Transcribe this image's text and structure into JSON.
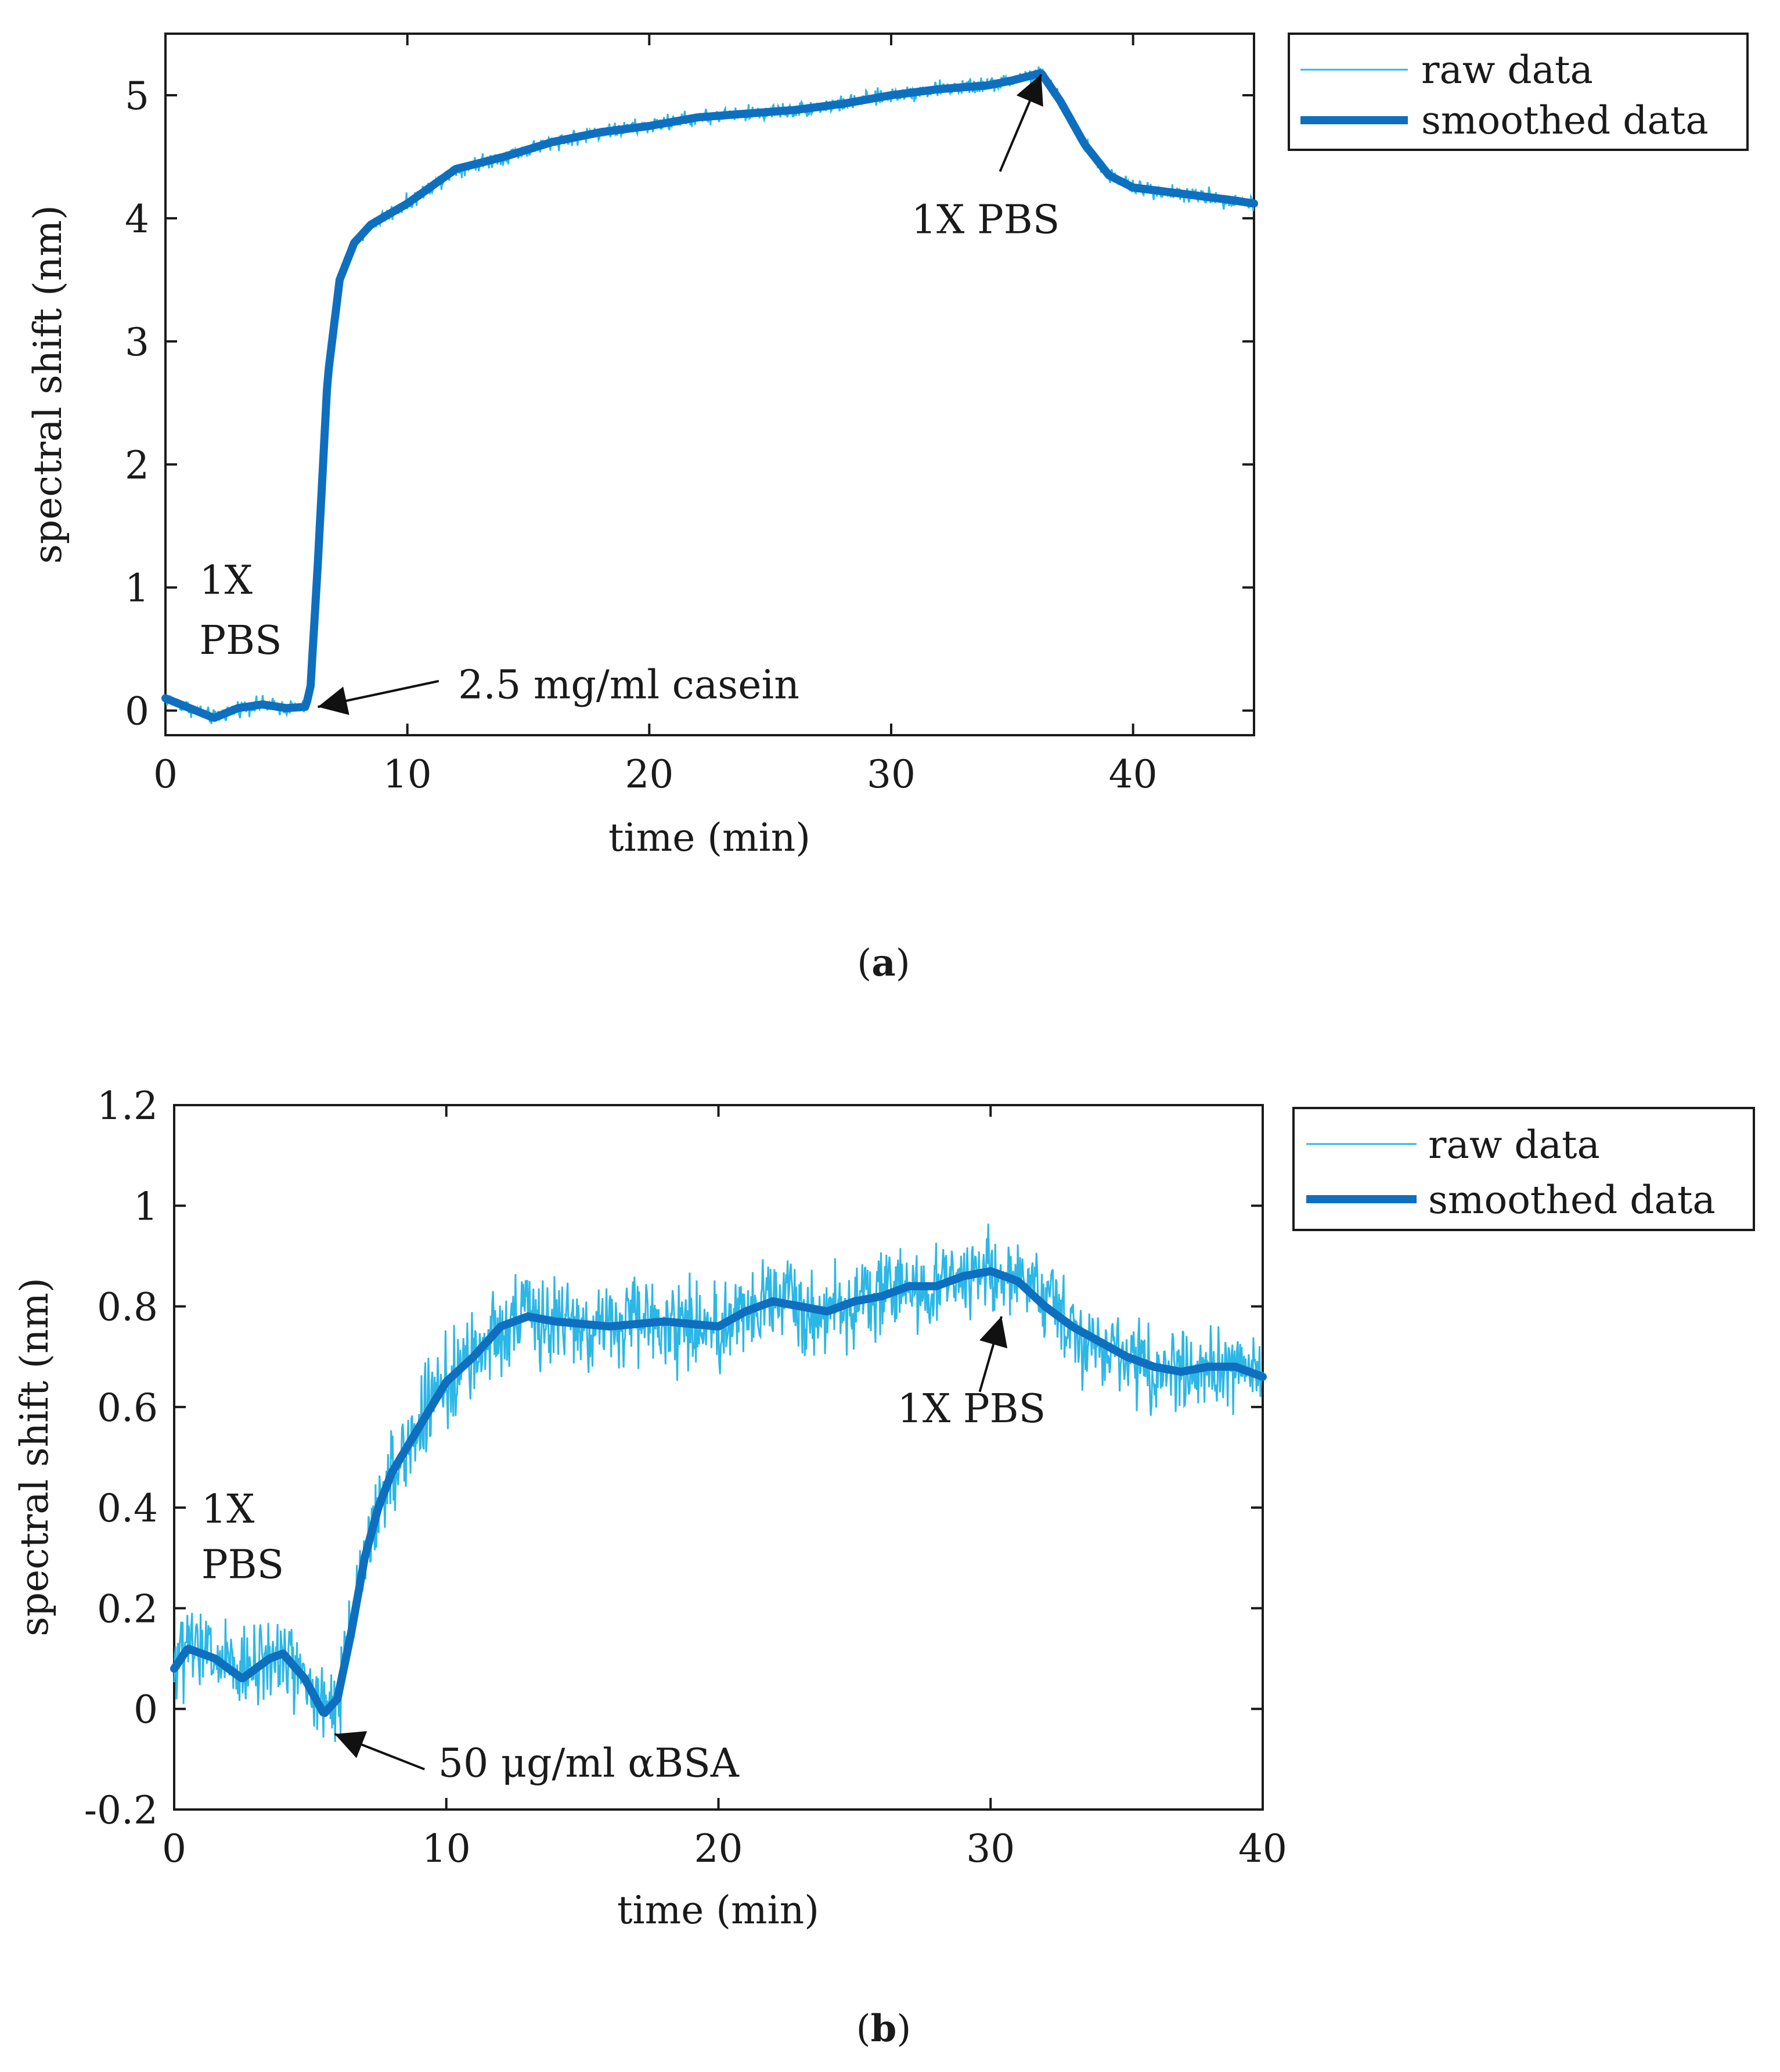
{
  "colors": {
    "raw": "#2cb7e6",
    "smoothed": "#0f6fbf",
    "axis": "#1a1a1a",
    "background": "#ffffff"
  },
  "chart_data": [
    {
      "panel_label": "(a)",
      "panel_letter": "a",
      "type": "line",
      "xlabel": "time (min)",
      "ylabel": "spectral shift (nm)",
      "xlim": [
        0,
        45
      ],
      "ylim": [
        -0.2,
        5.5
      ],
      "xticks": [
        0,
        10,
        20,
        30,
        40
      ],
      "xtick_labels": [
        "0",
        "10",
        "20",
        "30",
        "40"
      ],
      "yticks": [
        0,
        1,
        2,
        3,
        4,
        5
      ],
      "ytick_labels": [
        "0",
        "1",
        "2",
        "3",
        "4",
        "5"
      ],
      "legend": {
        "position": "outside-top-right",
        "entries": [
          "raw data",
          "smoothed data"
        ]
      },
      "series": [
        {
          "name": "raw data",
          "noise": 0.06,
          "x": [
            0,
            1,
            2,
            3,
            4,
            5,
            5.8,
            6.0,
            6.3,
            6.7,
            7.2,
            7.8,
            8.5,
            10,
            12,
            14,
            16,
            18,
            20,
            22,
            24,
            26,
            28,
            30,
            32,
            34,
            35,
            36.2,
            37,
            38,
            39,
            40,
            42,
            44,
            45
          ],
          "y": [
            0.1,
            0.02,
            -0.06,
            0.02,
            0.05,
            0.02,
            0.03,
            0.2,
            1.2,
            2.7,
            3.5,
            3.8,
            3.95,
            4.12,
            4.4,
            4.5,
            4.62,
            4.7,
            4.75,
            4.82,
            4.85,
            4.88,
            4.93,
            5.0,
            5.05,
            5.08,
            5.12,
            5.18,
            4.95,
            4.6,
            4.35,
            4.25,
            4.2,
            4.15,
            4.12
          ]
        },
        {
          "name": "smoothed data",
          "x": [
            0,
            1,
            2,
            3,
            4,
            5,
            5.8,
            6.0,
            6.3,
            6.7,
            7.2,
            7.8,
            8.5,
            10,
            12,
            14,
            16,
            18,
            20,
            22,
            24,
            26,
            28,
            30,
            32,
            34,
            35,
            36.2,
            37,
            38,
            39,
            40,
            42,
            44,
            45
          ],
          "y": [
            0.1,
            0.02,
            -0.06,
            0.02,
            0.05,
            0.02,
            0.03,
            0.2,
            1.2,
            2.7,
            3.5,
            3.8,
            3.95,
            4.12,
            4.4,
            4.5,
            4.62,
            4.7,
            4.75,
            4.82,
            4.85,
            4.88,
            4.93,
            5.0,
            5.05,
            5.08,
            5.12,
            5.18,
            4.95,
            4.6,
            4.35,
            4.25,
            4.2,
            4.15,
            4.12
          ]
        }
      ],
      "annotations": [
        {
          "id": "a-1x-pbs-start-1",
          "text": "1X",
          "x": 1.4,
          "y": 0.95,
          "anchor": "start"
        },
        {
          "id": "a-1x-pbs-start-2",
          "text": "PBS",
          "x": 1.4,
          "y": 0.46,
          "anchor": "start"
        },
        {
          "id": "a-casein",
          "text": "2.5 mg/ml casein",
          "x": 12.1,
          "y": 0.1,
          "anchor": "start",
          "arrow": {
            "from": [
              11.3,
              0.24
            ],
            "to": [
              6.3,
              0.03
            ]
          }
        },
        {
          "id": "a-1x-pbs-end",
          "text": "1X PBS",
          "x": 33.9,
          "y": 3.88,
          "anchor": "middle",
          "arrow": {
            "from": [
              34.5,
              4.38
            ],
            "to": [
              36.2,
              5.17
            ]
          }
        }
      ]
    },
    {
      "panel_label": "(b)",
      "panel_letter": "b",
      "type": "line",
      "xlabel": "time (min)",
      "ylabel": "spectral shift (nm)",
      "xlim": [
        0,
        40
      ],
      "ylim": [
        -0.2,
        1.2
      ],
      "xticks": [
        0,
        10,
        20,
        30,
        40
      ],
      "xtick_labels": [
        "0",
        "10",
        "20",
        "30",
        "40"
      ],
      "yticks": [
        -0.2,
        0,
        0.2,
        0.4,
        0.6,
        0.8,
        1,
        1.2
      ],
      "ytick_labels": [
        "-0.2",
        "0",
        "0.2",
        "0.4",
        "0.6",
        "0.8",
        "1",
        "1.2"
      ],
      "legend": {
        "position": "outside-top-right",
        "entries": [
          "raw data",
          "smoothed data"
        ]
      },
      "series": [
        {
          "name": "raw data",
          "noise": 0.08,
          "x": [
            0,
            0.5,
            1.5,
            2.5,
            3.5,
            4.0,
            4.8,
            5.5,
            6.0,
            6.5,
            7.0,
            7.5,
            8.0,
            9.0,
            10.0,
            11.0,
            12.0,
            13.0,
            14.0,
            16.0,
            18.0,
            20.0,
            21.0,
            22.0,
            24.0,
            25.0,
            26.0,
            27.0,
            28.0,
            29.0,
            30.0,
            31.0,
            32.0,
            33.0,
            34.0,
            35.0,
            36.0,
            37.0,
            38.0,
            39.0,
            40.0
          ],
          "y": [
            0.08,
            0.12,
            0.1,
            0.06,
            0.1,
            0.11,
            0.06,
            -0.01,
            0.02,
            0.15,
            0.3,
            0.4,
            0.47,
            0.56,
            0.65,
            0.7,
            0.76,
            0.78,
            0.77,
            0.76,
            0.77,
            0.76,
            0.79,
            0.81,
            0.79,
            0.81,
            0.82,
            0.84,
            0.84,
            0.86,
            0.87,
            0.85,
            0.8,
            0.76,
            0.73,
            0.7,
            0.68,
            0.67,
            0.68,
            0.68,
            0.66
          ]
        },
        {
          "name": "smoothed data",
          "x": [
            0,
            0.5,
            1.5,
            2.5,
            3.5,
            4.0,
            4.8,
            5.5,
            6.0,
            6.5,
            7.0,
            7.5,
            8.0,
            9.0,
            10.0,
            11.0,
            12.0,
            13.0,
            14.0,
            16.0,
            18.0,
            20.0,
            21.0,
            22.0,
            24.0,
            25.0,
            26.0,
            27.0,
            28.0,
            29.0,
            30.0,
            31.0,
            32.0,
            33.0,
            34.0,
            35.0,
            36.0,
            37.0,
            38.0,
            39.0,
            40.0
          ],
          "y": [
            0.08,
            0.12,
            0.1,
            0.06,
            0.1,
            0.11,
            0.06,
            -0.01,
            0.02,
            0.15,
            0.3,
            0.4,
            0.47,
            0.56,
            0.65,
            0.7,
            0.76,
            0.78,
            0.77,
            0.76,
            0.77,
            0.76,
            0.79,
            0.81,
            0.79,
            0.81,
            0.82,
            0.84,
            0.84,
            0.86,
            0.87,
            0.85,
            0.8,
            0.76,
            0.73,
            0.7,
            0.68,
            0.67,
            0.68,
            0.68,
            0.66
          ]
        }
      ],
      "annotations": [
        {
          "id": "b-1x-pbs-start-1",
          "text": "1X",
          "x": 1.0,
          "y": 0.37,
          "anchor": "start"
        },
        {
          "id": "b-1x-pbs-start-2",
          "text": "PBS",
          "x": 1.0,
          "y": 0.26,
          "anchor": "start"
        },
        {
          "id": "b-abs",
          "text": "50 μg/ml αBSA",
          "x": 9.7,
          "y": -0.135,
          "anchor": "start",
          "arrow": {
            "from": [
              9.2,
              -0.12
            ],
            "to": [
              5.9,
              -0.05
            ]
          }
        },
        {
          "id": "b-1x-pbs-end",
          "text": "1X PBS",
          "x": 29.3,
          "y": 0.57,
          "anchor": "middle",
          "arrow": {
            "from": [
              29.6,
              0.63
            ],
            "to": [
              30.4,
              0.78
            ]
          }
        }
      ]
    }
  ]
}
